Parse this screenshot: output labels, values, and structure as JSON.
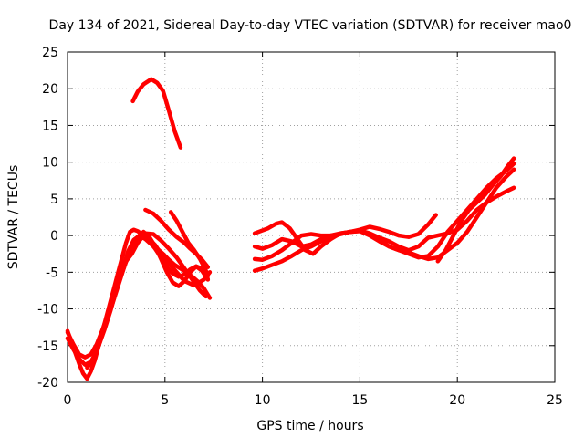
{
  "chart_data": {
    "type": "line",
    "title": "Day 134 of 2021, Sidereal Day-to-day VTEC variation (SDTVAR) for receiver mao0",
    "xlabel": "GPS time / hours",
    "ylabel": "SDTVAR / TECUs",
    "xlim": [
      0,
      25
    ],
    "ylim": [
      -20,
      25
    ],
    "xticks": [
      0,
      5,
      10,
      15,
      20,
      25
    ],
    "yticks": [
      -20,
      -15,
      -10,
      -5,
      0,
      5,
      10,
      15,
      20,
      25
    ],
    "grid": true,
    "line_color": "#ff0000",
    "series": [
      {
        "name": "s1",
        "x": [
          3.35,
          3.6,
          3.9,
          4.3,
          4.6,
          4.9,
          5.2,
          5.5,
          5.8
        ],
        "y": [
          18.3,
          19.6,
          20.6,
          21.3,
          20.8,
          19.7,
          17.0,
          14.2,
          12.0
        ]
      },
      {
        "name": "s2",
        "x": [
          0.0,
          0.2,
          0.4,
          0.6,
          0.8,
          1.0,
          1.2,
          1.4,
          1.6,
          1.8,
          2.0,
          2.2,
          2.4,
          2.6,
          2.8,
          3.0,
          3.2,
          3.4,
          3.6,
          3.8,
          4.0,
          4.2,
          4.5,
          4.8,
          5.2,
          5.6,
          6.0,
          6.5,
          7.0,
          7.3
        ],
        "y": [
          -13.0,
          -14.5,
          -16.0,
          -17.5,
          -18.8,
          -19.5,
          -18.5,
          -17.0,
          -15.0,
          -13.0,
          -11.0,
          -9.0,
          -7.0,
          -5.0,
          -3.0,
          -1.0,
          0.5,
          0.8,
          0.6,
          0.2,
          0.0,
          -0.5,
          -1.3,
          -2.5,
          -3.8,
          -5.0,
          -6.2,
          -6.8,
          -6.0,
          -5.0
        ]
      },
      {
        "name": "s3",
        "x": [
          0.0,
          0.3,
          0.6,
          0.9,
          1.2,
          1.5,
          1.8,
          2.1,
          2.4,
          2.7,
          3.0,
          3.3,
          3.6,
          3.9,
          4.2,
          4.5,
          4.8,
          5.1,
          5.4,
          5.7,
          6.0,
          6.3,
          6.6,
          6.9,
          7.2
        ],
        "y": [
          -14.0,
          -15.5,
          -16.8,
          -17.6,
          -17.2,
          -15.8,
          -13.5,
          -11.0,
          -8.5,
          -6.0,
          -3.5,
          -1.5,
          -0.2,
          0.5,
          -0.2,
          -1.5,
          -3.2,
          -5.0,
          -6.4,
          -6.9,
          -6.2,
          -5.0,
          -4.2,
          -4.5,
          -5.5
        ]
      },
      {
        "name": "s4",
        "x": [
          0.0,
          0.3,
          0.6,
          0.9,
          1.2,
          1.5,
          1.8,
          2.1,
          2.4,
          2.7,
          3.0,
          3.3,
          3.6,
          3.9,
          4.2,
          4.5,
          4.8,
          5.1,
          5.4,
          5.7,
          6.0,
          6.3,
          6.6,
          6.9,
          7.2
        ],
        "y": [
          -13.2,
          -14.8,
          -16.2,
          -16.6,
          -16.2,
          -14.8,
          -12.8,
          -10.5,
          -8.0,
          -5.8,
          -3.6,
          -1.8,
          -0.6,
          -0.2,
          -0.8,
          -1.8,
          -3.0,
          -4.3,
          -5.2,
          -5.6,
          -5.3,
          -4.6,
          -4.2,
          -4.8,
          -6.0
        ]
      },
      {
        "name": "s5",
        "x": [
          1.0,
          1.3,
          1.6,
          1.9,
          2.2,
          2.5,
          2.8,
          3.1,
          3.4,
          3.7,
          4.0,
          4.3,
          4.6,
          4.9,
          5.2,
          5.5,
          5.8,
          6.1,
          6.4,
          6.7,
          7.0,
          7.3
        ],
        "y": [
          -18.0,
          -17.0,
          -15.0,
          -12.8,
          -10.3,
          -7.5,
          -4.8,
          -2.2,
          -0.6,
          0.0,
          -0.5,
          -1.2,
          -1.8,
          -2.5,
          -3.3,
          -4.0,
          -4.5,
          -5.0,
          -5.6,
          -6.3,
          -7.2,
          -8.5
        ]
      },
      {
        "name": "s6",
        "x": [
          3.0,
          3.3,
          3.6,
          4.0,
          4.4,
          4.8,
          5.2,
          5.6,
          6.0,
          6.4,
          6.8,
          7.1
        ],
        "y": [
          -3.5,
          -2.5,
          -1.0,
          0.3,
          0.2,
          -0.7,
          -1.8,
          -3.0,
          -4.5,
          -6.0,
          -7.5,
          -8.3
        ]
      },
      {
        "name": "s7",
        "x": [
          4.0,
          4.4,
          4.8,
          5.2,
          5.6,
          6.0,
          6.3,
          6.6,
          6.9,
          7.2
        ],
        "y": [
          3.5,
          3.0,
          2.0,
          0.8,
          -0.2,
          -1.0,
          -1.8,
          -2.5,
          -3.3,
          -4.3
        ]
      },
      {
        "name": "s8",
        "x": [
          5.3,
          5.6,
          5.9,
          6.2,
          6.5,
          6.8,
          7.1,
          7.2
        ],
        "y": [
          3.2,
          2.0,
          0.5,
          -1.0,
          -2.0,
          -3.2,
          -4.8,
          -6.0
        ]
      },
      {
        "name": "s9",
        "x": [
          9.6,
          9.9,
          10.3,
          10.7,
          11.0,
          11.4,
          11.8,
          12.2,
          12.6,
          13.0,
          13.5,
          14.0,
          14.5,
          15.0,
          15.5,
          16.0,
          16.5,
          17.0,
          17.5,
          18.0,
          18.5,
          18.9
        ],
        "y": [
          0.3,
          0.6,
          1.0,
          1.6,
          1.8,
          1.0,
          -0.5,
          -2.0,
          -2.5,
          -1.5,
          -0.5,
          0.3,
          0.5,
          0.8,
          1.2,
          0.9,
          0.5,
          0.0,
          -0.2,
          0.2,
          1.5,
          2.8
        ]
      },
      {
        "name": "s10",
        "x": [
          9.6,
          10.0,
          10.5,
          11.0,
          11.5,
          12.0,
          12.5,
          13.0,
          13.5,
          14.0,
          14.5,
          15.0,
          15.5,
          16.0,
          16.5,
          17.0,
          17.5,
          18.0,
          18.5,
          19.0,
          19.5,
          20.0,
          20.5,
          21.0,
          21.5,
          22.0,
          22.5,
          22.9
        ],
        "y": [
          -1.5,
          -1.8,
          -1.3,
          -0.5,
          -0.8,
          -1.5,
          -1.2,
          -0.5,
          0.0,
          0.3,
          0.5,
          0.7,
          0.3,
          -0.3,
          -0.8,
          -1.5,
          -2.0,
          -1.5,
          -0.3,
          0.0,
          0.3,
          0.8,
          2.0,
          3.5,
          4.5,
          5.3,
          6.0,
          6.5
        ]
      },
      {
        "name": "s11",
        "x": [
          9.6,
          10.0,
          10.5,
          11.0,
          11.5,
          12.0,
          12.5,
          13.0,
          13.5,
          14.0,
          14.5,
          15.0,
          15.5,
          16.0,
          16.5,
          17.0,
          17.5,
          18.0,
          18.5,
          19.0,
          19.5,
          20.0,
          20.5,
          21.0,
          21.5,
          22.0,
          22.5,
          22.9
        ],
        "y": [
          -3.2,
          -3.3,
          -2.8,
          -2.0,
          -1.0,
          0.0,
          0.2,
          0.0,
          0.0,
          0.2,
          0.5,
          0.6,
          0.2,
          -0.5,
          -1.5,
          -2.0,
          -2.5,
          -3.0,
          -2.8,
          -1.5,
          0.5,
          2.0,
          3.5,
          5.0,
          6.5,
          7.8,
          8.8,
          9.8
        ]
      },
      {
        "name": "s12",
        "x": [
          9.6,
          10.0,
          10.5,
          11.0,
          11.5,
          12.0,
          12.5,
          13.0,
          13.5,
          14.0,
          14.5,
          15.0,
          15.5,
          16.0,
          16.5,
          17.0,
          17.5,
          18.0,
          18.5,
          19.0,
          19.5,
          20.0,
          20.5,
          21.0,
          21.5,
          22.0,
          22.5,
          22.9
        ],
        "y": [
          -4.8,
          -4.5,
          -4.0,
          -3.5,
          -2.8,
          -2.0,
          -1.5,
          -0.8,
          -0.3,
          0.2,
          0.5,
          0.6,
          0.0,
          -0.8,
          -1.5,
          -2.0,
          -2.3,
          -2.8,
          -3.2,
          -3.0,
          -2.0,
          -1.0,
          0.5,
          2.5,
          4.5,
          6.5,
          8.0,
          9.0
        ]
      },
      {
        "name": "s13",
        "x": [
          19.0,
          19.4,
          19.8,
          20.2,
          20.6,
          21.0,
          21.4,
          21.8,
          22.2,
          22.6,
          22.9
        ],
        "y": [
          -3.5,
          -2.0,
          0.0,
          2.0,
          3.5,
          4.5,
          5.5,
          6.8,
          8.0,
          9.5,
          10.5
        ]
      }
    ]
  }
}
